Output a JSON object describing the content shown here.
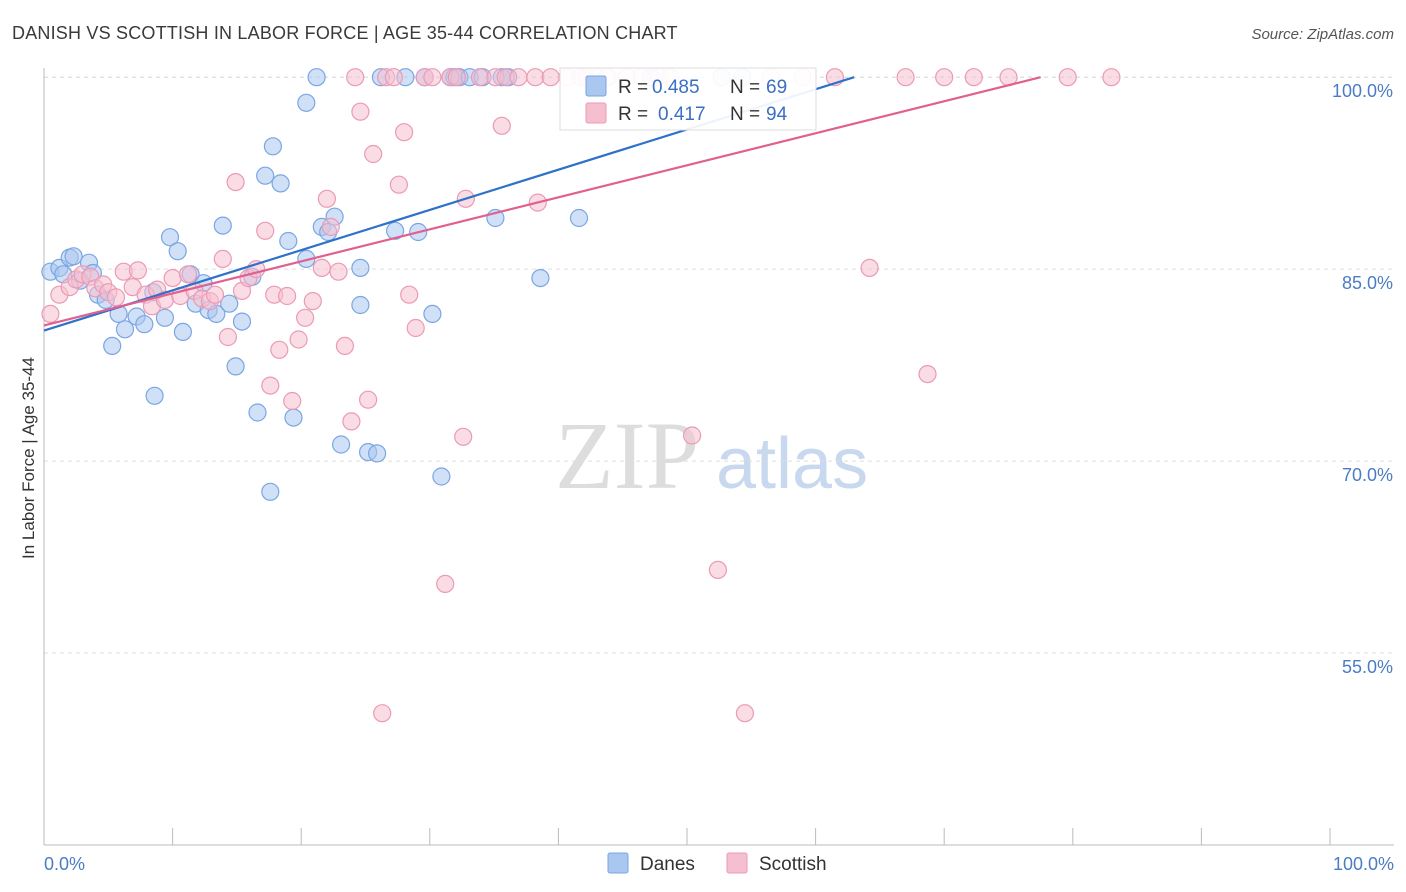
{
  "chart_data": {
    "type": "scatter",
    "title": "DANISH VS SCOTTISH IN LABOR FORCE | AGE 35-44 CORRELATION CHART",
    "source": "Source: ZipAtlas.com",
    "xlabel": "",
    "ylabel": "In Labor Force | Age 35-44",
    "xlim": [
      0,
      100
    ],
    "ylim": [
      40,
      101.5
    ],
    "x_tick_labels": [
      "0.0%",
      "100.0%"
    ],
    "y_ticks": [
      55,
      70,
      85,
      100
    ],
    "y_tick_labels": [
      "55.0%",
      "70.0%",
      "85.0%",
      "100.0%"
    ],
    "watermark": {
      "part1": "ZIP",
      "part2": "atlas"
    },
    "legend": {
      "r_label": "R =",
      "n_label": "N =",
      "items": [
        {
          "name": "Danes",
          "r": "0.485",
          "n": "69",
          "color": "#7aa6e3",
          "fill": "#aac7f0",
          "line_color": "#2e72c8"
        },
        {
          "name": "Scottish",
          "r": "0.417",
          "n": "94",
          "color": "#eb9ab5",
          "fill": "#f6bfd0",
          "line_color": "#e0608f"
        }
      ]
    },
    "series": [
      {
        "name": "Danes",
        "trend": {
          "x0": 0,
          "y0": 80.2,
          "x1": 63,
          "y1": 100.0
        },
        "points": [
          [
            0.5,
            84.8
          ],
          [
            1.2,
            85.1
          ],
          [
            1.5,
            84.6
          ],
          [
            2.0,
            85.9
          ],
          [
            2.3,
            86.0
          ],
          [
            2.8,
            84.1
          ],
          [
            3.5,
            85.5
          ],
          [
            3.8,
            84.7
          ],
          [
            4.2,
            83.0
          ],
          [
            4.8,
            82.6
          ],
          [
            5.3,
            79.0
          ],
          [
            5.8,
            81.5
          ],
          [
            6.3,
            80.3
          ],
          [
            7.2,
            81.3
          ],
          [
            7.8,
            80.7
          ],
          [
            8.5,
            83.2
          ],
          [
            8.6,
            75.1
          ],
          [
            9.4,
            81.2
          ],
          [
            9.8,
            87.5
          ],
          [
            10.4,
            86.4
          ],
          [
            10.8,
            80.1
          ],
          [
            11.4,
            84.6
          ],
          [
            11.8,
            82.3
          ],
          [
            12.4,
            83.9
          ],
          [
            12.8,
            81.8
          ],
          [
            13.4,
            81.5
          ],
          [
            13.9,
            88.4
          ],
          [
            14.4,
            82.3
          ],
          [
            14.9,
            77.4
          ],
          [
            15.4,
            80.9
          ],
          [
            16.2,
            84.4
          ],
          [
            16.6,
            73.8
          ],
          [
            17.2,
            92.3
          ],
          [
            17.6,
            67.6
          ],
          [
            17.8,
            94.6
          ],
          [
            18.4,
            91.7
          ],
          [
            19.0,
            87.2
          ],
          [
            19.4,
            73.4
          ],
          [
            20.4,
            85.8
          ],
          [
            20.4,
            98.0
          ],
          [
            21.2,
            100.0
          ],
          [
            21.6,
            88.3
          ],
          [
            22.1,
            87.9
          ],
          [
            22.6,
            89.1
          ],
          [
            23.1,
            71.3
          ],
          [
            24.6,
            85.1
          ],
          [
            24.6,
            82.2
          ],
          [
            25.2,
            70.7
          ],
          [
            25.9,
            70.6
          ],
          [
            26.2,
            100.0
          ],
          [
            27.3,
            88.0
          ],
          [
            28.1,
            100.0
          ],
          [
            29.1,
            87.9
          ],
          [
            29.6,
            100.0
          ],
          [
            30.2,
            81.5
          ],
          [
            30.9,
            68.8
          ],
          [
            31.6,
            100.0
          ],
          [
            31.9,
            100.0
          ],
          [
            32.3,
            100.0
          ],
          [
            33.1,
            100.0
          ],
          [
            34.1,
            100.0
          ],
          [
            35.1,
            89.0
          ],
          [
            35.6,
            100.0
          ],
          [
            36.1,
            100.0
          ],
          [
            38.6,
            84.3
          ],
          [
            41.6,
            89.0
          ],
          [
            47.2,
            100.0
          ],
          [
            52.7,
            100.0
          ],
          [
            54.3,
            100.0
          ]
        ]
      },
      {
        "name": "Scottish",
        "trend": {
          "x0": 0,
          "y0": 80.6,
          "x1": 77.5,
          "y1": 100.0
        },
        "points": [
          [
            0.5,
            81.5
          ],
          [
            1.2,
            83.0
          ],
          [
            2.0,
            83.6
          ],
          [
            2.5,
            84.2
          ],
          [
            3.0,
            84.6
          ],
          [
            3.6,
            84.4
          ],
          [
            4.0,
            83.5
          ],
          [
            4.6,
            83.8
          ],
          [
            5.0,
            83.2
          ],
          [
            5.6,
            82.8
          ],
          [
            6.2,
            84.8
          ],
          [
            6.9,
            83.6
          ],
          [
            7.3,
            84.9
          ],
          [
            7.9,
            83.0
          ],
          [
            8.4,
            82.1
          ],
          [
            8.8,
            83.4
          ],
          [
            9.4,
            82.6
          ],
          [
            10.0,
            84.3
          ],
          [
            10.6,
            82.9
          ],
          [
            11.2,
            84.6
          ],
          [
            11.7,
            83.3
          ],
          [
            12.3,
            82.7
          ],
          [
            12.9,
            82.5
          ],
          [
            13.3,
            83.0
          ],
          [
            13.9,
            85.8
          ],
          [
            14.3,
            79.7
          ],
          [
            14.9,
            91.8
          ],
          [
            15.4,
            83.3
          ],
          [
            15.9,
            84.3
          ],
          [
            16.5,
            85.0
          ],
          [
            17.2,
            88.0
          ],
          [
            17.6,
            75.9
          ],
          [
            17.9,
            83.0
          ],
          [
            18.3,
            78.7
          ],
          [
            18.9,
            82.9
          ],
          [
            19.3,
            74.7
          ],
          [
            19.8,
            79.5
          ],
          [
            20.3,
            81.2
          ],
          [
            20.9,
            82.5
          ],
          [
            21.6,
            85.1
          ],
          [
            22.0,
            90.5
          ],
          [
            22.3,
            88.3
          ],
          [
            22.9,
            84.8
          ],
          [
            23.4,
            79.0
          ],
          [
            23.9,
            73.1
          ],
          [
            24.2,
            100.0
          ],
          [
            24.6,
            97.3
          ],
          [
            25.2,
            74.8
          ],
          [
            25.6,
            94.0
          ],
          [
            26.3,
            50.3
          ],
          [
            26.6,
            100.0
          ],
          [
            27.2,
            100.0
          ],
          [
            27.6,
            91.6
          ],
          [
            28.0,
            95.7
          ],
          [
            28.4,
            83.0
          ],
          [
            28.9,
            80.4
          ],
          [
            29.6,
            100.0
          ],
          [
            30.2,
            100.0
          ],
          [
            31.2,
            60.4
          ],
          [
            31.6,
            100.0
          ],
          [
            32.1,
            100.0
          ],
          [
            32.6,
            71.9
          ],
          [
            32.8,
            90.5
          ],
          [
            33.9,
            100.0
          ],
          [
            35.1,
            100.0
          ],
          [
            35.6,
            96.2
          ],
          [
            35.9,
            100.0
          ],
          [
            36.9,
            100.0
          ],
          [
            38.2,
            100.0
          ],
          [
            38.4,
            90.2
          ],
          [
            39.4,
            100.0
          ],
          [
            40.7,
            100.0
          ],
          [
            41.7,
            100.0
          ],
          [
            42.2,
            100.0
          ],
          [
            43.0,
            100.0
          ],
          [
            43.8,
            100.0
          ],
          [
            45.3,
            100.0
          ],
          [
            46.5,
            100.0
          ],
          [
            47.8,
            100.0
          ],
          [
            48.7,
            100.0
          ],
          [
            50.4,
            72.0
          ],
          [
            52.4,
            61.5
          ],
          [
            54.5,
            50.3
          ],
          [
            56.5,
            100.0
          ],
          [
            59.0,
            100.0
          ],
          [
            61.5,
            100.0
          ],
          [
            64.2,
            85.1
          ],
          [
            67.0,
            100.0
          ],
          [
            68.7,
            76.8
          ],
          [
            70.0,
            100.0
          ],
          [
            72.3,
            100.0
          ],
          [
            75.0,
            100.0
          ],
          [
            79.6,
            100.0
          ],
          [
            83.0,
            100.0
          ]
        ]
      }
    ]
  }
}
